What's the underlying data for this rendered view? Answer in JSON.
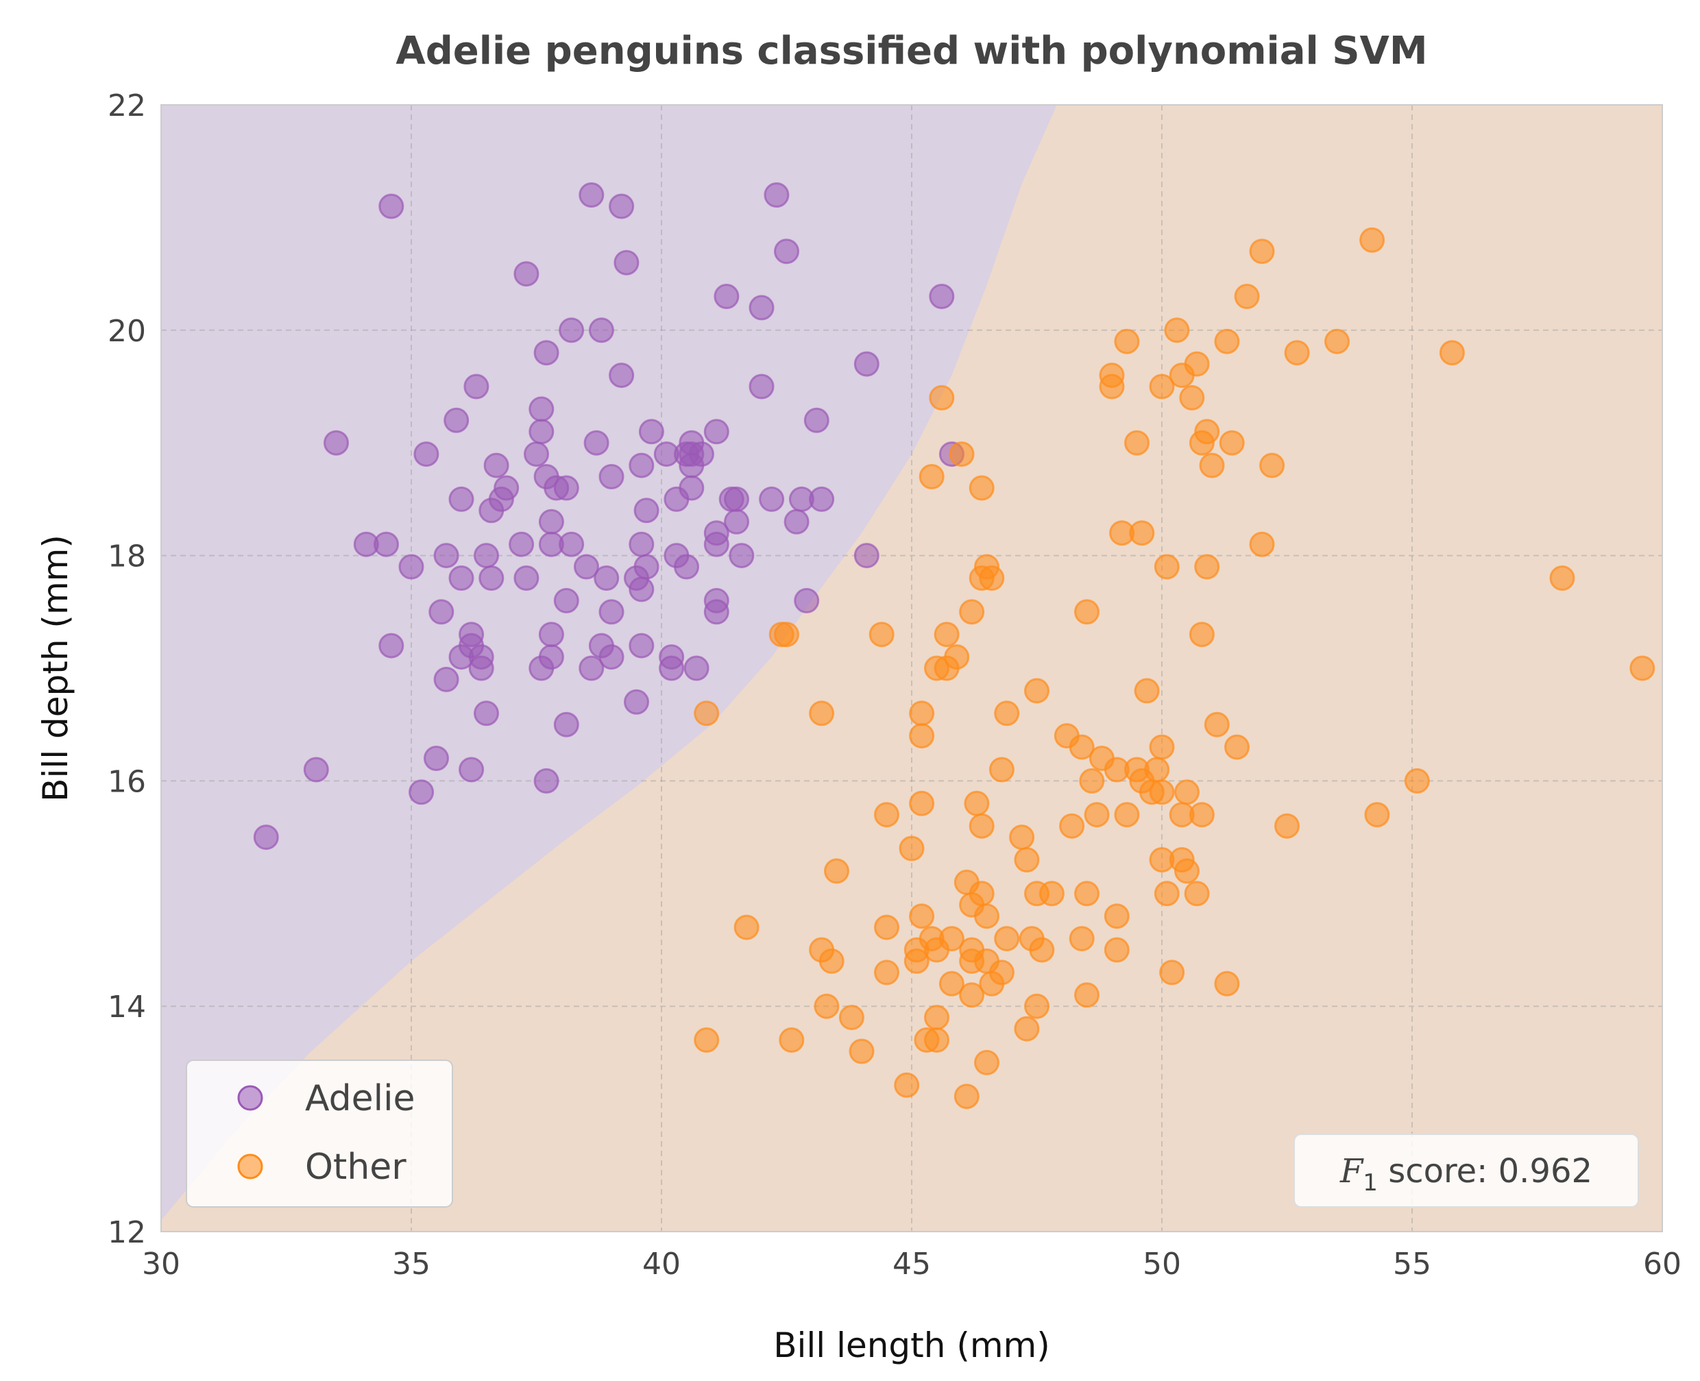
{
  "chart_data": {
    "type": "scatter",
    "title": "Adelie penguins classified with polynomial SVM",
    "xlabel": "Bill length (mm)",
    "ylabel": "Bill depth (mm)",
    "xlim": [
      30,
      60
    ],
    "ylim": [
      12,
      22
    ],
    "xticks": [
      "30",
      "35",
      "40",
      "45",
      "50",
      "55",
      "60"
    ],
    "yticks": [
      "12",
      "14",
      "16",
      "18",
      "20",
      "22"
    ],
    "grid": true,
    "legend_position": "lower-left",
    "annotation": {
      "symbol": "F",
      "subscript": "1",
      "text": " score: 0.962"
    },
    "decision_boundary": [
      [
        30,
        12.1
      ],
      [
        31.5,
        12.9
      ],
      [
        33,
        13.6
      ],
      [
        35,
        14.4
      ],
      [
        37,
        15.1
      ],
      [
        38,
        15.45
      ],
      [
        39.5,
        15.95
      ],
      [
        41,
        16.5
      ],
      [
        42.2,
        17.1
      ],
      [
        43,
        17.6
      ],
      [
        44,
        18.2
      ],
      [
        45,
        18.9
      ],
      [
        45.8,
        19.6
      ],
      [
        46.5,
        20.4
      ],
      [
        47.2,
        21.3
      ],
      [
        47.9,
        22
      ]
    ],
    "regions": {
      "Adelie": "#dad1e2",
      "Other": "#eddacb"
    },
    "series": [
      {
        "name": "Adelie",
        "color": "#9b59b6",
        "points": [
          [
            32.1,
            15.5
          ],
          [
            33.1,
            16.1
          ],
          [
            33.5,
            19.0
          ],
          [
            34.1,
            18.1
          ],
          [
            34.5,
            18.1
          ],
          [
            34.6,
            21.1
          ],
          [
            34.6,
            17.2
          ],
          [
            35.0,
            17.9
          ],
          [
            35.2,
            15.9
          ],
          [
            35.3,
            18.9
          ],
          [
            35.5,
            16.2
          ],
          [
            35.6,
            17.5
          ],
          [
            35.7,
            16.9
          ],
          [
            35.7,
            18.0
          ],
          [
            35.9,
            19.2
          ],
          [
            36.0,
            18.5
          ],
          [
            36.0,
            17.8
          ],
          [
            36.0,
            17.1
          ],
          [
            36.2,
            17.3
          ],
          [
            36.2,
            17.2
          ],
          [
            36.2,
            16.1
          ],
          [
            36.3,
            19.5
          ],
          [
            36.4,
            17.1
          ],
          [
            36.4,
            17.0
          ],
          [
            36.5,
            18.0
          ],
          [
            36.5,
            16.6
          ],
          [
            36.6,
            18.4
          ],
          [
            36.6,
            17.8
          ],
          [
            36.7,
            18.8
          ],
          [
            36.8,
            18.5
          ],
          [
            36.9,
            18.6
          ],
          [
            37.2,
            18.1
          ],
          [
            37.3,
            20.5
          ],
          [
            37.3,
            17.8
          ],
          [
            37.5,
            18.9
          ],
          [
            37.6,
            19.3
          ],
          [
            37.6,
            19.1
          ],
          [
            37.6,
            17.0
          ],
          [
            37.7,
            18.7
          ],
          [
            37.7,
            16.0
          ],
          [
            37.8,
            18.3
          ],
          [
            37.8,
            18.1
          ],
          [
            37.8,
            17.3
          ],
          [
            37.8,
            17.1
          ],
          [
            37.7,
            19.8
          ],
          [
            37.9,
            18.6
          ],
          [
            38.1,
            18.6
          ],
          [
            38.1,
            17.6
          ],
          [
            38.1,
            16.5
          ],
          [
            38.2,
            18.1
          ],
          [
            38.2,
            20.0
          ],
          [
            38.5,
            17.9
          ],
          [
            38.6,
            21.2
          ],
          [
            38.6,
            17.0
          ],
          [
            38.7,
            19.0
          ],
          [
            38.8,
            20.0
          ],
          [
            38.8,
            17.2
          ],
          [
            38.9,
            17.8
          ],
          [
            39.0,
            18.7
          ],
          [
            39.0,
            17.5
          ],
          [
            39.0,
            17.1
          ],
          [
            39.2,
            21.1
          ],
          [
            39.2,
            19.6
          ],
          [
            39.3,
            20.6
          ],
          [
            39.5,
            17.8
          ],
          [
            39.5,
            16.7
          ],
          [
            39.6,
            18.8
          ],
          [
            39.6,
            18.1
          ],
          [
            39.6,
            17.7
          ],
          [
            39.6,
            17.2
          ],
          [
            39.7,
            18.4
          ],
          [
            39.7,
            17.9
          ],
          [
            39.8,
            19.1
          ],
          [
            40.1,
            18.9
          ],
          [
            40.2,
            17.1
          ],
          [
            40.2,
            17.0
          ],
          [
            40.3,
            18.5
          ],
          [
            40.3,
            18.0
          ],
          [
            40.5,
            18.9
          ],
          [
            40.5,
            17.9
          ],
          [
            40.6,
            19.0
          ],
          [
            40.6,
            18.9
          ],
          [
            40.6,
            18.8
          ],
          [
            40.6,
            18.6
          ],
          [
            40.7,
            17.0
          ],
          [
            40.8,
            18.9
          ],
          [
            41.1,
            19.1
          ],
          [
            41.1,
            18.2
          ],
          [
            41.1,
            18.1
          ],
          [
            41.1,
            17.6
          ],
          [
            41.1,
            17.5
          ],
          [
            41.3,
            20.3
          ],
          [
            41.4,
            18.5
          ],
          [
            41.5,
            18.5
          ],
          [
            41.5,
            18.3
          ],
          [
            41.6,
            18.0
          ],
          [
            42.0,
            20.2
          ],
          [
            42.0,
            19.5
          ],
          [
            42.2,
            18.5
          ],
          [
            42.3,
            21.2
          ],
          [
            42.5,
            20.7
          ],
          [
            42.7,
            18.3
          ],
          [
            42.8,
            18.5
          ],
          [
            42.9,
            17.6
          ],
          [
            43.1,
            19.2
          ],
          [
            43.2,
            18.5
          ],
          [
            44.1,
            19.7
          ],
          [
            44.1,
            18.0
          ],
          [
            45.6,
            20.3
          ],
          [
            45.8,
            18.9
          ]
        ]
      },
      {
        "name": "Other",
        "color": "#ff8c1a",
        "points": [
          [
            40.9,
            16.6
          ],
          [
            40.9,
            13.7
          ],
          [
            41.7,
            14.7
          ],
          [
            42.4,
            17.3
          ],
          [
            42.5,
            17.3
          ],
          [
            42.6,
            13.7
          ],
          [
            43.2,
            16.6
          ],
          [
            43.2,
            14.5
          ],
          [
            43.3,
            14.0
          ],
          [
            43.4,
            14.4
          ],
          [
            43.5,
            15.2
          ],
          [
            43.8,
            13.9
          ],
          [
            44.0,
            13.6
          ],
          [
            44.4,
            17.3
          ],
          [
            44.5,
            15.7
          ],
          [
            44.5,
            14.7
          ],
          [
            44.5,
            14.3
          ],
          [
            44.9,
            13.3
          ],
          [
            45.0,
            15.4
          ],
          [
            45.1,
            14.5
          ],
          [
            45.1,
            14.4
          ],
          [
            45.2,
            16.6
          ],
          [
            45.2,
            16.4
          ],
          [
            45.2,
            15.8
          ],
          [
            45.2,
            14.8
          ],
          [
            45.3,
            13.7
          ],
          [
            45.4,
            18.7
          ],
          [
            45.4,
            14.6
          ],
          [
            45.5,
            17.0
          ],
          [
            45.5,
            14.5
          ],
          [
            45.5,
            13.9
          ],
          [
            45.5,
            13.7
          ],
          [
            45.6,
            19.4
          ],
          [
            45.7,
            17.3
          ],
          [
            45.7,
            17.0
          ],
          [
            45.8,
            14.6
          ],
          [
            45.8,
            14.2
          ],
          [
            45.9,
            17.1
          ],
          [
            46.0,
            18.9
          ],
          [
            46.1,
            15.1
          ],
          [
            46.1,
            13.2
          ],
          [
            46.2,
            17.5
          ],
          [
            46.2,
            14.9
          ],
          [
            46.2,
            14.5
          ],
          [
            46.2,
            14.4
          ],
          [
            46.2,
            14.1
          ],
          [
            46.3,
            15.8
          ],
          [
            46.4,
            18.6
          ],
          [
            46.4,
            17.8
          ],
          [
            46.4,
            15.6
          ],
          [
            46.4,
            15.0
          ],
          [
            46.5,
            17.9
          ],
          [
            46.5,
            14.8
          ],
          [
            46.5,
            14.4
          ],
          [
            46.5,
            13.5
          ],
          [
            46.6,
            17.8
          ],
          [
            46.6,
            14.2
          ],
          [
            46.8,
            16.1
          ],
          [
            46.8,
            14.3
          ],
          [
            46.9,
            16.6
          ],
          [
            46.9,
            14.6
          ],
          [
            47.2,
            15.5
          ],
          [
            47.3,
            15.3
          ],
          [
            47.3,
            13.8
          ],
          [
            47.4,
            14.6
          ],
          [
            47.5,
            16.8
          ],
          [
            47.5,
            15.0
          ],
          [
            47.5,
            14.0
          ],
          [
            47.6,
            14.5
          ],
          [
            47.8,
            15.0
          ],
          [
            48.1,
            16.4
          ],
          [
            48.2,
            15.6
          ],
          [
            48.4,
            16.3
          ],
          [
            48.4,
            14.6
          ],
          [
            48.5,
            17.5
          ],
          [
            48.5,
            15.0
          ],
          [
            48.5,
            14.1
          ],
          [
            48.6,
            16.0
          ],
          [
            48.7,
            15.7
          ],
          [
            48.8,
            16.2
          ],
          [
            49.0,
            19.6
          ],
          [
            49.0,
            19.5
          ],
          [
            49.1,
            16.1
          ],
          [
            49.1,
            14.8
          ],
          [
            49.1,
            14.5
          ],
          [
            49.2,
            18.2
          ],
          [
            49.3,
            19.9
          ],
          [
            49.3,
            15.7
          ],
          [
            49.5,
            19.0
          ],
          [
            49.5,
            16.1
          ],
          [
            49.6,
            18.2
          ],
          [
            49.6,
            16.0
          ],
          [
            49.7,
            16.8
          ],
          [
            49.8,
            15.9
          ],
          [
            49.9,
            16.1
          ],
          [
            50.0,
            19.5
          ],
          [
            50.0,
            16.3
          ],
          [
            50.0,
            15.9
          ],
          [
            50.0,
            15.3
          ],
          [
            50.1,
            17.9
          ],
          [
            50.1,
            15.0
          ],
          [
            50.2,
            14.3
          ],
          [
            50.3,
            20.0
          ],
          [
            50.4,
            19.6
          ],
          [
            50.4,
            15.7
          ],
          [
            50.4,
            15.3
          ],
          [
            50.5,
            15.9
          ],
          [
            50.5,
            15.2
          ],
          [
            50.6,
            19.4
          ],
          [
            50.7,
            19.7
          ],
          [
            50.7,
            15.0
          ],
          [
            50.8,
            19.0
          ],
          [
            50.8,
            17.3
          ],
          [
            50.8,
            15.7
          ],
          [
            50.9,
            19.1
          ],
          [
            50.9,
            17.9
          ],
          [
            51.0,
            18.8
          ],
          [
            51.1,
            16.5
          ],
          [
            51.3,
            19.9
          ],
          [
            51.3,
            14.2
          ],
          [
            51.4,
            19.0
          ],
          [
            51.5,
            16.3
          ],
          [
            51.7,
            20.3
          ],
          [
            52.0,
            20.7
          ],
          [
            52.0,
            18.1
          ],
          [
            52.2,
            18.8
          ],
          [
            52.5,
            15.6
          ],
          [
            52.7,
            19.8
          ],
          [
            53.5,
            19.9
          ],
          [
            54.2,
            20.8
          ],
          [
            54.3,
            15.7
          ],
          [
            55.1,
            16.0
          ],
          [
            55.8,
            19.8
          ],
          [
            58.0,
            17.8
          ],
          [
            59.6,
            17.0
          ]
        ]
      }
    ]
  }
}
